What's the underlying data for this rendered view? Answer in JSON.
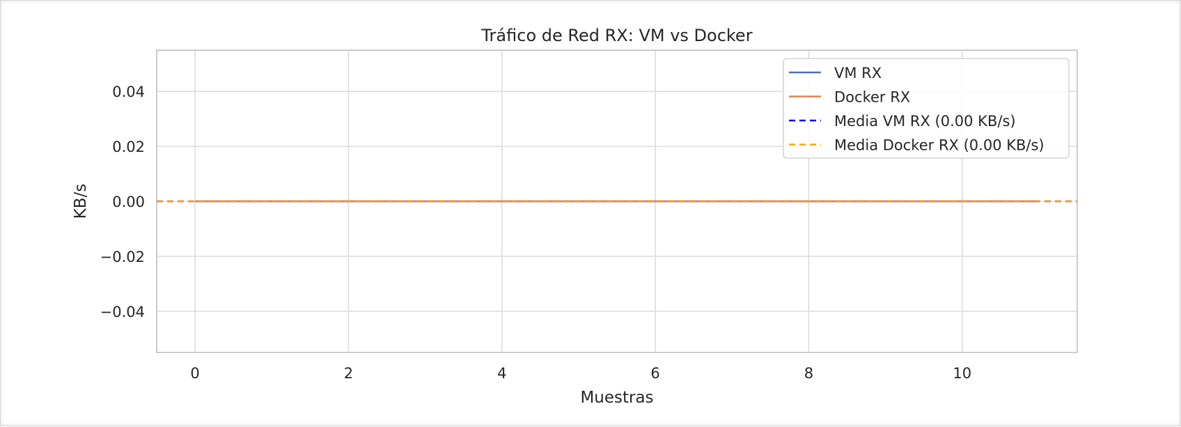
{
  "chart_data": {
    "type": "line",
    "title": "Tráfico de Red RX: VM vs Docker",
    "xlabel": "Muestras",
    "ylabel": "KB/s",
    "xlim": [
      -0.5,
      11.5
    ],
    "ylim": [
      -0.055,
      0.055
    ],
    "xticks": [
      0,
      2,
      4,
      6,
      8,
      10
    ],
    "xtick_labels": [
      "0",
      "2",
      "4",
      "6",
      "8",
      "10"
    ],
    "yticks": [
      -0.04,
      -0.02,
      0.0,
      0.02,
      0.04
    ],
    "ytick_labels": [
      "−0.04",
      "−0.02",
      "0.00",
      "0.02",
      "0.04"
    ],
    "grid": true,
    "legend_position": "top-right",
    "x": [
      0,
      1,
      2,
      3,
      4,
      5,
      6,
      7,
      8,
      9,
      10,
      11
    ],
    "series": [
      {
        "name": "VM RX",
        "values": [
          0,
          0,
          0,
          0,
          0,
          0,
          0,
          0,
          0,
          0,
          0,
          0
        ],
        "color": "#4c72b0",
        "style": "solid"
      },
      {
        "name": "Docker RX",
        "values": [
          0,
          0,
          0,
          0,
          0,
          0,
          0,
          0,
          0,
          0,
          0,
          0
        ],
        "color": "#dd8452",
        "style": "solid"
      }
    ],
    "hlines": [
      {
        "name": "Media VM RX (0.00 KB/s)",
        "y": 0.0,
        "color": "#0000ff",
        "style": "dashed"
      },
      {
        "name": "Media Docker RX (0.00 KB/s)",
        "y": 0.0,
        "color": "#ffa500",
        "style": "dashed"
      }
    ]
  }
}
